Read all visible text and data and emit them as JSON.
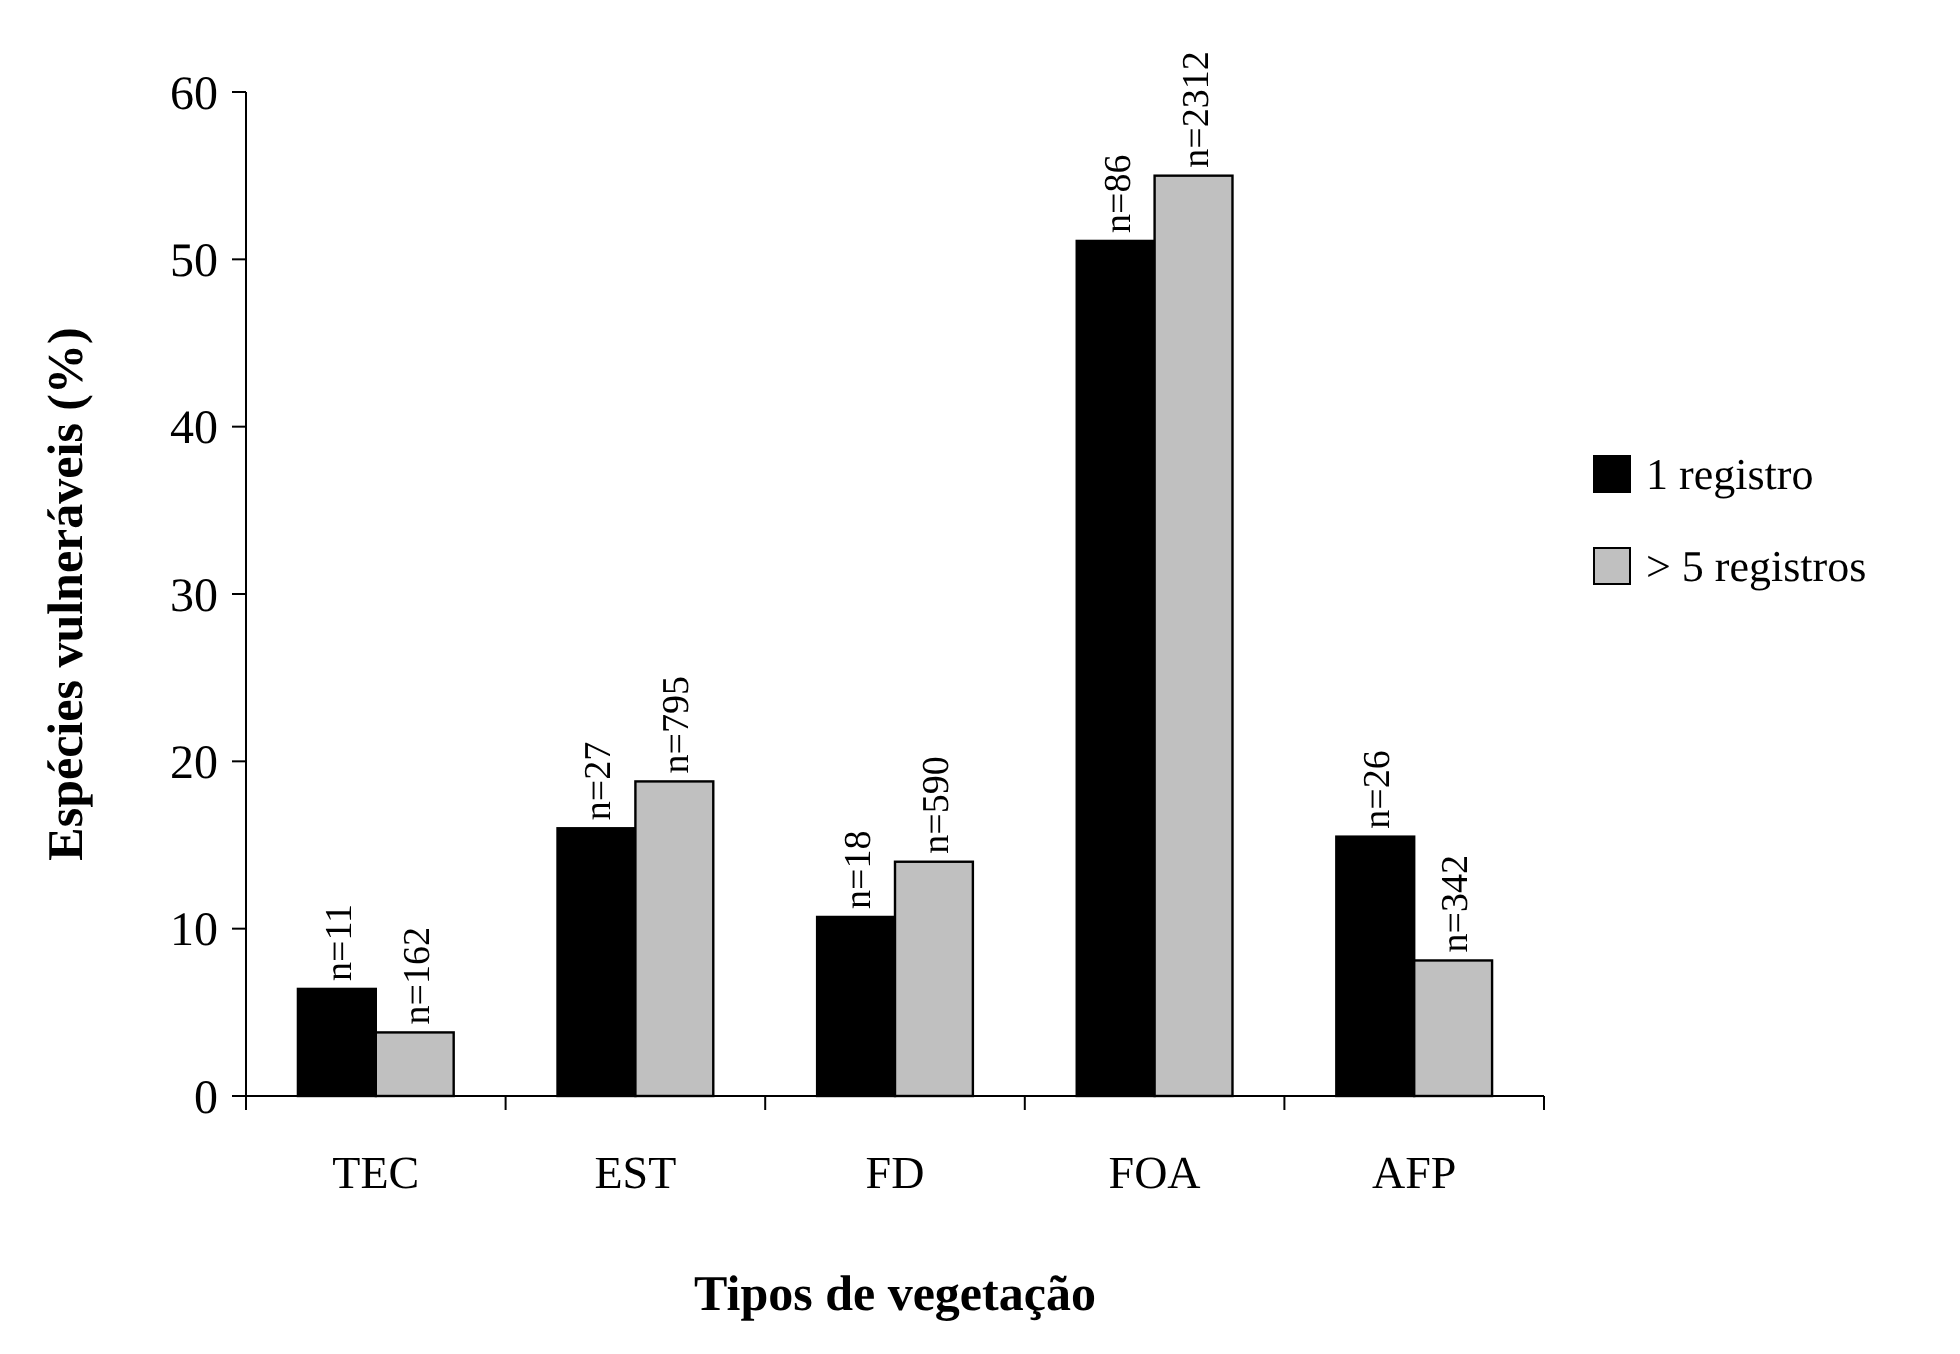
{
  "chart_data": {
    "type": "bar",
    "xlabel": "Tipos de vegetação",
    "ylabel": "Espécies vulneráveis (%)",
    "categories": [
      "TEC",
      "EST",
      "FD",
      "FOA",
      "AFP"
    ],
    "series": [
      {
        "name": "1 registro",
        "color": "#000000",
        "values": [
          6.4,
          16.0,
          10.7,
          51.1,
          15.5
        ]
      },
      {
        "name": "> 5 registros",
        "color": "#c0c0c0",
        "values": [
          3.8,
          18.8,
          14.0,
          55.0,
          8.1
        ]
      }
    ],
    "annotations": [
      {
        "text": "n=11",
        "x": "TEC",
        "y": 6.4
      },
      {
        "text": "n=162",
        "x": "TEC",
        "y": 3.8
      },
      {
        "text": "n=27",
        "x": "EST",
        "y": 16.0
      },
      {
        "text": "n=795",
        "x": "EST",
        "y": 18.8
      },
      {
        "text": "n=18",
        "x": "FD",
        "y": 10.7
      },
      {
        "text": "n=590",
        "x": "FD",
        "y": 14.0
      },
      {
        "text": "n=86",
        "x": "FOA",
        "y": 51.1
      },
      {
        "text": "n=2312",
        "x": "FOA",
        "y": 55.0
      },
      {
        "text": "n=26",
        "x": "AFP",
        "y": 15.5
      },
      {
        "text": "n=342",
        "x": "AFP",
        "y": 8.1
      }
    ],
    "ylim": [
      0,
      60
    ],
    "yticks": [
      0,
      10,
      20,
      30,
      40,
      50,
      60
    ],
    "grid": false,
    "legend": "right"
  }
}
